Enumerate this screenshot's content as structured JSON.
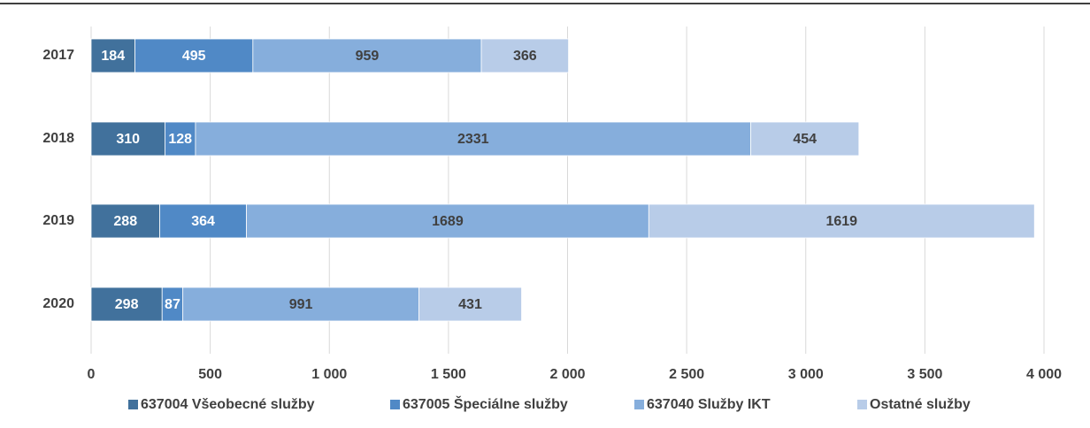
{
  "chart_data": {
    "type": "stacked-bar-horizontal",
    "categories": [
      "2017",
      "2018",
      "2019",
      "2020"
    ],
    "series": [
      {
        "name": "637004 Všeobecné služby",
        "color": "#41719c",
        "values": [
          184,
          310,
          288,
          298
        ]
      },
      {
        "name": "637005 Špeciálne služby",
        "color": "#5089c6",
        "values": [
          495,
          128,
          364,
          87
        ]
      },
      {
        "name": "637040 Služby IKT",
        "color": "#86aedc",
        "values": [
          959,
          2331,
          1689,
          991
        ]
      },
      {
        "name": "Ostatné služby",
        "color": "#b8cce8",
        "values": [
          366,
          454,
          1619,
          431
        ]
      }
    ],
    "xlim": [
      0,
      4000
    ],
    "xticks": [
      0,
      500,
      {
        "value": 1000,
        "label": "1 000"
      },
      {
        "value": 1500,
        "label": "1 500"
      },
      {
        "value": 2000,
        "label": "2 000"
      },
      {
        "value": 2500,
        "label": "2 500"
      },
      {
        "value": 3000,
        "label": "3 000"
      },
      {
        "value": 3500,
        "label": "3 500"
      },
      {
        "value": 4000,
        "label": "4 000"
      }
    ],
    "grid": true,
    "legend": "bottom"
  }
}
